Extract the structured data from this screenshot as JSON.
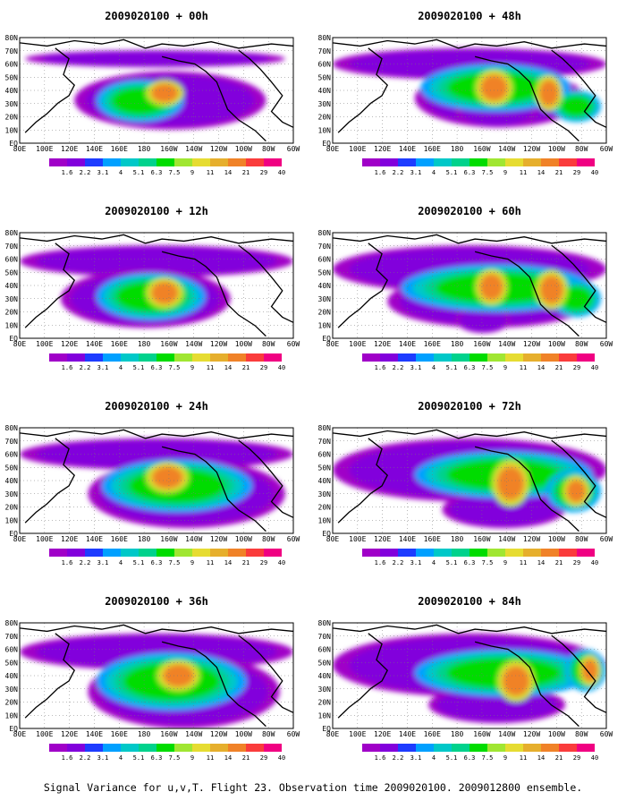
{
  "panels": [
    {
      "title": "2009020100 + 00h"
    },
    {
      "title": "2009020100 + 48h"
    },
    {
      "title": "2009020100 + 12h"
    },
    {
      "title": "2009020100 + 60h"
    },
    {
      "title": "2009020100 + 24h"
    },
    {
      "title": "2009020100 + 72h"
    },
    {
      "title": "2009020100 + 36h"
    },
    {
      "title": "2009020100 + 84h"
    }
  ],
  "lat_labels": [
    "80N",
    "70N",
    "60N",
    "50N",
    "40N",
    "30N",
    "20N",
    "10N",
    "EQ"
  ],
  "lon_labels": [
    "80E",
    "100E",
    "120E",
    "140E",
    "160E",
    "180",
    "160W",
    "140W",
    "120W",
    "100W",
    "80W",
    "60W"
  ],
  "colorbar": {
    "labels": [
      "1.6",
      "2.2",
      "3.1",
      "4",
      "5.1",
      "6.3",
      "7.5",
      "9",
      "11",
      "14",
      "21",
      "29",
      "40"
    ],
    "colors": [
      "#a000c8",
      "#8200dc",
      "#1e3cff",
      "#00a0ff",
      "#00c8c8",
      "#00d28c",
      "#00dc00",
      "#a0e632",
      "#e6dc32",
      "#e6af2d",
      "#f08228",
      "#fa3c3c",
      "#f00082"
    ]
  },
  "caption": "Signal Variance for u,v,T. Flight 23. Observation time 2009020100. 2009012800 ensemble."
}
